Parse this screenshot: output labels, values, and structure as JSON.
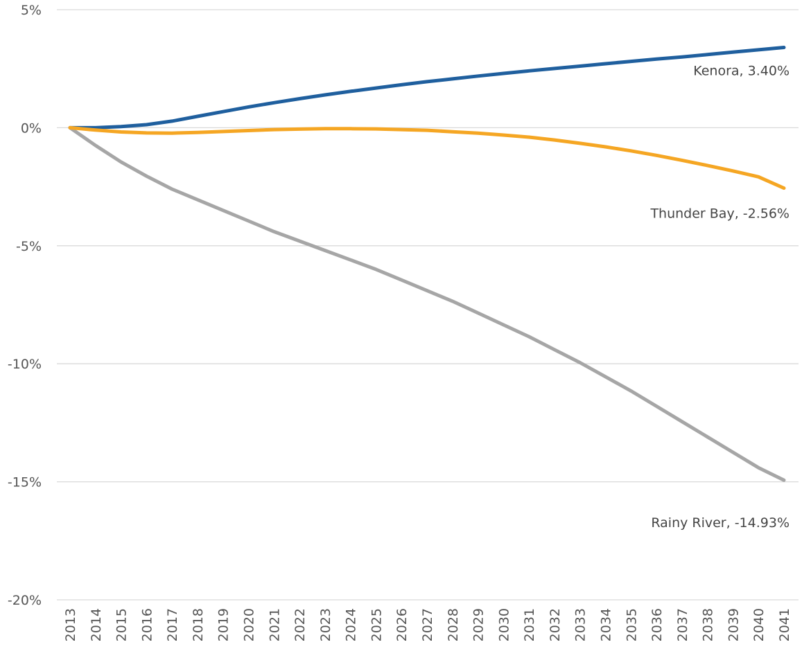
{
  "chart_data": {
    "type": "line",
    "title": "",
    "xlabel": "",
    "ylabel": "",
    "ylim": [
      -20,
      5
    ],
    "yticks": [
      "5%",
      "0%",
      "-5%",
      "-10%",
      "-15%",
      "-20%"
    ],
    "ytick_values": [
      5,
      0,
      -5,
      -10,
      -15,
      -20
    ],
    "grid": true,
    "legend": "none",
    "x": [
      "2013",
      "2014",
      "2015",
      "2016",
      "2017",
      "2018",
      "2019",
      "2020",
      "2021",
      "2022",
      "2023",
      "2024",
      "2025",
      "2026",
      "2027",
      "2028",
      "2029",
      "2030",
      "2031",
      "2032",
      "2033",
      "2034",
      "2035",
      "2036",
      "2037",
      "2038",
      "2039",
      "2040",
      "2041"
    ],
    "series": [
      {
        "name": "Kenora",
        "label": "Kenora, 3.40%",
        "color": "#1f5f9e",
        "values": [
          0,
          0.0,
          0.05,
          0.13,
          0.28,
          0.48,
          0.68,
          0.88,
          1.06,
          1.23,
          1.39,
          1.54,
          1.68,
          1.82,
          1.95,
          2.07,
          2.19,
          2.3,
          2.41,
          2.51,
          2.61,
          2.71,
          2.81,
          2.91,
          3.0,
          3.1,
          3.2,
          3.3,
          3.4
        ]
      },
      {
        "name": "Thunder Bay",
        "label": "Thunder Bay, -2.56%",
        "color": "#f5a623",
        "values": [
          0,
          -0.1,
          -0.18,
          -0.22,
          -0.23,
          -0.2,
          -0.16,
          -0.12,
          -0.08,
          -0.06,
          -0.04,
          -0.04,
          -0.05,
          -0.08,
          -0.11,
          -0.17,
          -0.23,
          -0.31,
          -0.4,
          -0.52,
          -0.66,
          -0.81,
          -0.98,
          -1.17,
          -1.38,
          -1.6,
          -1.83,
          -2.08,
          -2.56
        ]
      },
      {
        "name": "Rainy River",
        "label": "Rainy River, -14.93%",
        "color": "#a6a6a6",
        "values": [
          0,
          -0.75,
          -1.45,
          -2.05,
          -2.6,
          -3.05,
          -3.5,
          -3.95,
          -4.4,
          -4.8,
          -5.2,
          -5.6,
          -6.0,
          -6.45,
          -6.9,
          -7.35,
          -7.85,
          -8.35,
          -8.85,
          -9.4,
          -9.95,
          -10.55,
          -11.15,
          -11.8,
          -12.45,
          -13.1,
          -13.75,
          -14.4,
          -14.93
        ]
      }
    ]
  }
}
